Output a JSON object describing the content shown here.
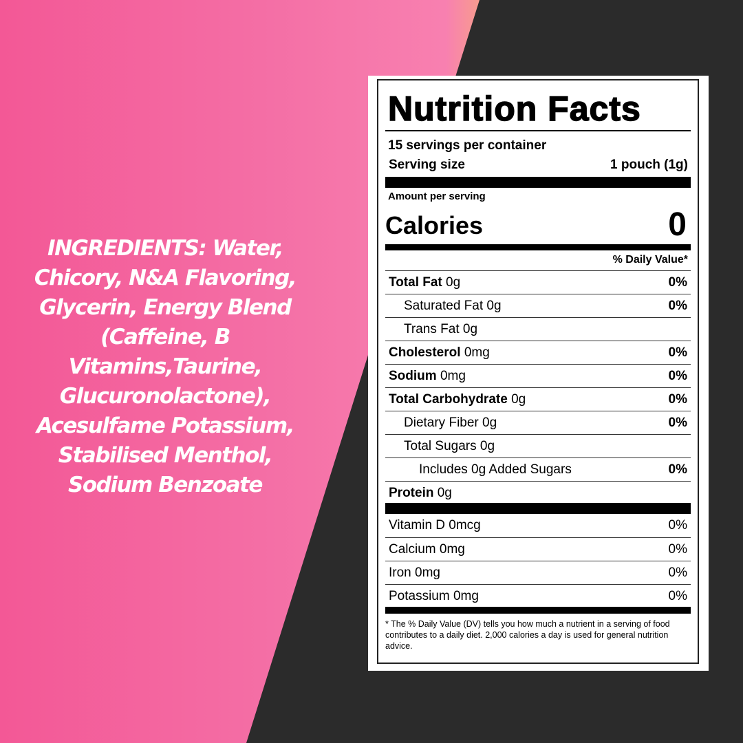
{
  "ingredients": "INGREDIENTS: Water, Chicory, N&A Flavoring, Glycerin, Energy Blend (Caffeine, B Vitamins,Taurine, Glucuronolactone), Acesulfame Potassium, Stabilised Menthol, Sodium Benzoate",
  "label": {
    "title": "Nutrition Facts",
    "servings": "15 servings per container",
    "serving_size_label": "Serving size",
    "serving_size_value": "1 pouch (1g)",
    "amount_per_serving": "Amount per serving",
    "calories_label": "Calories",
    "calories_value": "0",
    "dv_header": "% Daily Value*",
    "nutrients": [
      {
        "name": "Total Fat",
        "amount": "0g",
        "dv": "0%"
      },
      {
        "name": "Saturated Fat",
        "amount": "0g",
        "dv": "0%"
      },
      {
        "name": "Trans Fat",
        "amount": "0g",
        "dv": ""
      },
      {
        "name": "Cholesterol",
        "amount": "0mg",
        "dv": "0%"
      },
      {
        "name": "Sodium",
        "amount": "0mg",
        "dv": "0%"
      },
      {
        "name": "Total Carbohydrate",
        "amount": "0g",
        "dv": "0%"
      },
      {
        "name": "Dietary Fiber",
        "amount": "0g",
        "dv": "0%"
      },
      {
        "name": "Total Sugars",
        "amount": "0g",
        "dv": ""
      },
      {
        "name": "Includes 0g Added Sugars",
        "amount": "",
        "dv": "0%"
      },
      {
        "name": "Protein",
        "amount": "0g",
        "dv": ""
      }
    ],
    "vitamins": [
      {
        "name": "Vitamin D 0mcg",
        "dv": "0%"
      },
      {
        "name": "Calcium 0mg",
        "dv": "0%"
      },
      {
        "name": "Iron 0mg",
        "dv": "0%"
      },
      {
        "name": "Potassium 0mg",
        "dv": "0%"
      }
    ],
    "footnote": "* The % Daily Value (DV) tells you how much a nutrient in a serving of food contributes to a daily diet. 2,000 calories a day is used for general nutrition advice."
  }
}
